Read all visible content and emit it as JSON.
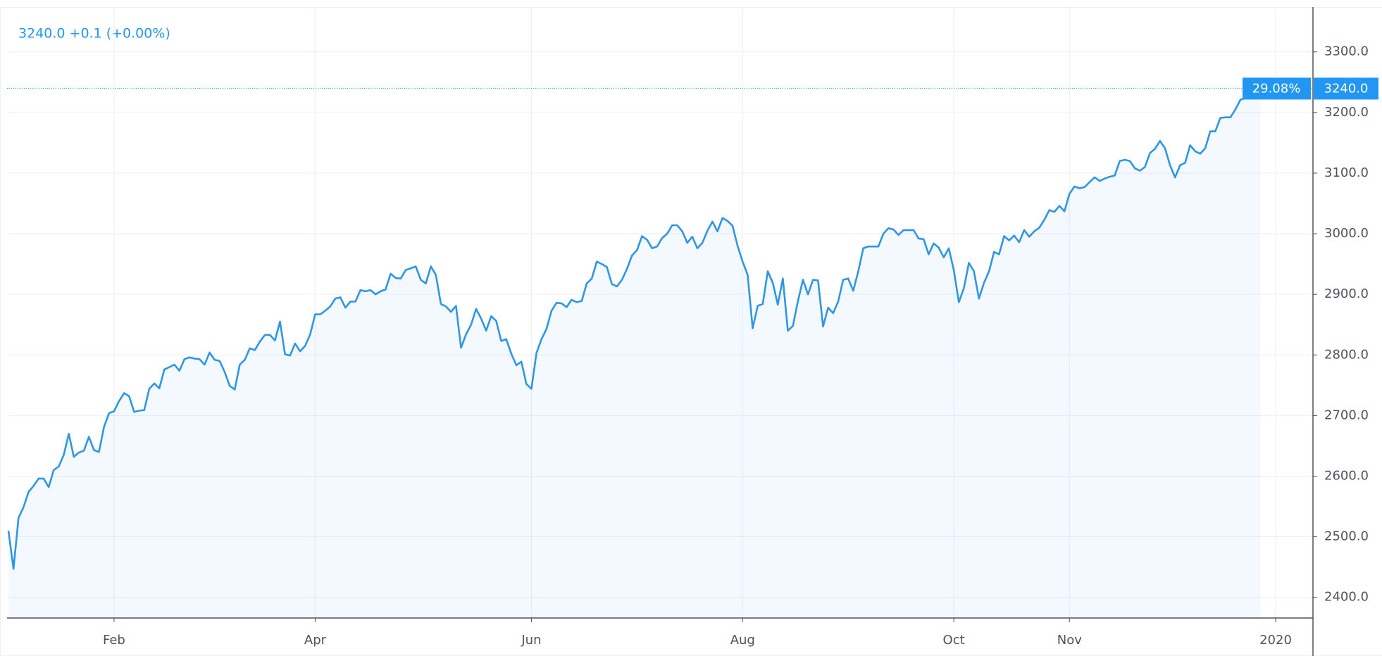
{
  "chart_data": {
    "type": "line",
    "header": "3240.0  +0.1 (+0.00%)",
    "percent_change_label": "29.08%",
    "last_price": {
      "value": 3240,
      "label": "3240.0"
    },
    "color": "#2f96e6",
    "grid": true,
    "ylim": [
      2366,
      3374
    ],
    "yticks": [
      {
        "value": 2400,
        "label": "2400.0"
      },
      {
        "value": 2500,
        "label": "2500.0"
      },
      {
        "value": 2600,
        "label": "2600.0"
      },
      {
        "value": 2700,
        "label": "2700.0"
      },
      {
        "value": 2800,
        "label": "2800.0"
      },
      {
        "value": 2900,
        "label": "2900.0"
      },
      {
        "value": 3000,
        "label": "3000.0"
      },
      {
        "value": 3100,
        "label": "3100.0"
      },
      {
        "value": 3200,
        "label": "3200.0"
      },
      {
        "value": 3300,
        "label": "3300.0"
      }
    ],
    "categories": [
      null,
      null,
      null,
      null,
      null,
      null,
      null,
      null,
      null,
      null,
      null,
      null,
      null,
      null,
      null,
      null,
      null,
      null,
      null,
      null,
      null,
      "Feb",
      null,
      null,
      null,
      null,
      null,
      null,
      null,
      null,
      null,
      null,
      null,
      null,
      null,
      null,
      null,
      null,
      null,
      null,
      null,
      null,
      null,
      null,
      null,
      null,
      null,
      null,
      null,
      null,
      null,
      null,
      null,
      null,
      null,
      null,
      null,
      null,
      null,
      null,
      null,
      "Apr",
      null,
      null,
      null,
      null,
      null,
      null,
      null,
      null,
      null,
      null,
      null,
      null,
      null,
      null,
      null,
      null,
      null,
      null,
      null,
      null,
      null,
      null,
      null,
      null,
      null,
      null,
      null,
      null,
      null,
      null,
      null,
      null,
      null,
      null,
      null,
      null,
      null,
      null,
      null,
      null,
      null,
      null,
      "Jun",
      null,
      null,
      null,
      null,
      null,
      null,
      null,
      null,
      null,
      null,
      null,
      null,
      null,
      null,
      null,
      null,
      null,
      null,
      null,
      null,
      null,
      null,
      null,
      null,
      null,
      null,
      null,
      null,
      null,
      null,
      null,
      null,
      null,
      null,
      null,
      null,
      null,
      null,
      null,
      null,
      null,
      "Aug",
      null,
      null,
      null,
      null,
      null,
      null,
      null,
      null,
      null,
      null,
      null,
      null,
      null,
      null,
      null,
      null,
      null,
      null,
      null,
      null,
      null,
      null,
      null,
      null,
      null,
      null,
      null,
      null,
      null,
      null,
      null,
      null,
      null,
      null,
      null,
      null,
      null,
      null,
      null,
      null,
      null,
      "Oct",
      null,
      null,
      null,
      null,
      null,
      null,
      null,
      null,
      null,
      null,
      null,
      null,
      null,
      null,
      null,
      null,
      null,
      null,
      null,
      null,
      null,
      null,
      "Nov",
      null,
      null,
      null,
      null,
      null,
      null,
      null,
      null,
      null,
      null,
      null,
      null,
      null,
      null,
      null,
      null,
      null,
      null,
      null,
      null,
      null,
      null,
      null,
      null,
      null,
      null,
      null,
      null,
      null,
      null,
      null,
      null,
      null,
      null,
      null,
      null,
      null,
      null,
      null,
      null,
      "2020"
    ],
    "values": [
      2510,
      2447,
      2531,
      2549,
      2574,
      2584,
      2596,
      2596,
      2582,
      2610,
      2616,
      2635,
      2670,
      2632,
      2639,
      2642,
      2665,
      2643,
      2640,
      2681,
      2704,
      2707,
      2724,
      2737,
      2732,
      2706,
      2708,
      2709,
      2744,
      2753,
      2745,
      2776,
      2780,
      2784,
      2774,
      2793,
      2796,
      2794,
      2793,
      2784,
      2804,
      2792,
      2790,
      2772,
      2749,
      2743,
      2784,
      2792,
      2811,
      2808,
      2822,
      2833,
      2833,
      2824,
      2855,
      2801,
      2799,
      2819,
      2806,
      2815,
      2834,
      2867,
      2867,
      2873,
      2880,
      2893,
      2895,
      2878,
      2888,
      2888,
      2907,
      2905,
      2907,
      2900,
      2905,
      2908,
      2934,
      2927,
      2926,
      2940,
      2943,
      2946,
      2924,
      2918,
      2946,
      2932,
      2884,
      2880,
      2871,
      2881,
      2812,
      2834,
      2850,
      2876,
      2860,
      2840,
      2864,
      2856,
      2823,
      2826,
      2802,
      2783,
      2789,
      2752,
      2744,
      2803,
      2826,
      2843,
      2873,
      2886,
      2885,
      2879,
      2891,
      2887,
      2889,
      2918,
      2926,
      2954,
      2950,
      2945,
      2917,
      2913,
      2924,
      2942,
      2964,
      2973,
      2996,
      2990,
      2976,
      2979,
      2993,
      3000,
      3014,
      3014,
      3004,
      2985,
      2995,
      2976,
      2985,
      3005,
      3020,
      3004,
      3026,
      3021,
      3013,
      2980,
      2954,
      2932,
      2844,
      2881,
      2884,
      2938,
      2919,
      2883,
      2926,
      2840,
      2848,
      2889,
      2924,
      2900,
      2924,
      2923,
      2847,
      2878,
      2869,
      2888,
      2924,
      2926,
      2906,
      2938,
      2976,
      2979,
      2979,
      2979,
      3000,
      3009,
      3007,
      2998,
      3006,
      3006,
      3006,
      2992,
      2991,
      2966,
      2984,
      2977,
      2961,
      2976,
      2940,
      2887,
      2910,
      2952,
      2938,
      2893,
      2919,
      2938,
      2970,
      2966,
      2996,
      2989,
      2997,
      2986,
      3006,
      2995,
      3004,
      3010,
      3023,
      3039,
      3036,
      3046,
      3037,
      3066,
      3078,
      3075,
      3077,
      3085,
      3093,
      3087,
      3091,
      3094,
      3096,
      3120,
      3122,
      3120,
      3108,
      3104,
      3110,
      3133,
      3140,
      3153,
      3141,
      3113,
      3093,
      3113,
      3117,
      3146,
      3136,
      3132,
      3141,
      3169,
      3169,
      3191,
      3192,
      3192,
      3205,
      3221,
      3224,
      3223,
      3240,
      3240,
      null,
      null,
      null
    ]
  }
}
